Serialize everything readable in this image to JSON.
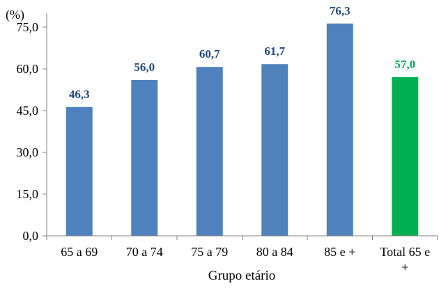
{
  "chart_data": {
    "type": "bar",
    "title": "",
    "unit_label": "(%)",
    "xlabel": "Grupo etário",
    "ylabel": "",
    "ylim": [
      0,
      75
    ],
    "yticks": [
      "0,0",
      "15,0",
      "30,0",
      "45,0",
      "60,0",
      "75,0"
    ],
    "ytick_values": [
      0,
      15,
      30,
      45,
      60,
      75
    ],
    "grid": false,
    "categories": [
      [
        "65 a 69"
      ],
      [
        "70 a 74"
      ],
      [
        "75 a 79"
      ],
      [
        "80 a 84"
      ],
      [
        "85 e +"
      ],
      [
        "Total 65 e",
        "+"
      ]
    ],
    "values": [
      46.3,
      56.0,
      60.7,
      61.7,
      76.3,
      57.0
    ],
    "data_labels": [
      "46,3",
      "56,0",
      "60,7",
      "61,7",
      "76,3",
      "57,0"
    ],
    "bar_colors": [
      "#4f81bd",
      "#4f81bd",
      "#4f81bd",
      "#4f81bd",
      "#4f81bd",
      "#00b050"
    ],
    "label_colors": [
      "#1f497d",
      "#1f497d",
      "#1f497d",
      "#1f497d",
      "#1f497d",
      "#00b050"
    ]
  }
}
